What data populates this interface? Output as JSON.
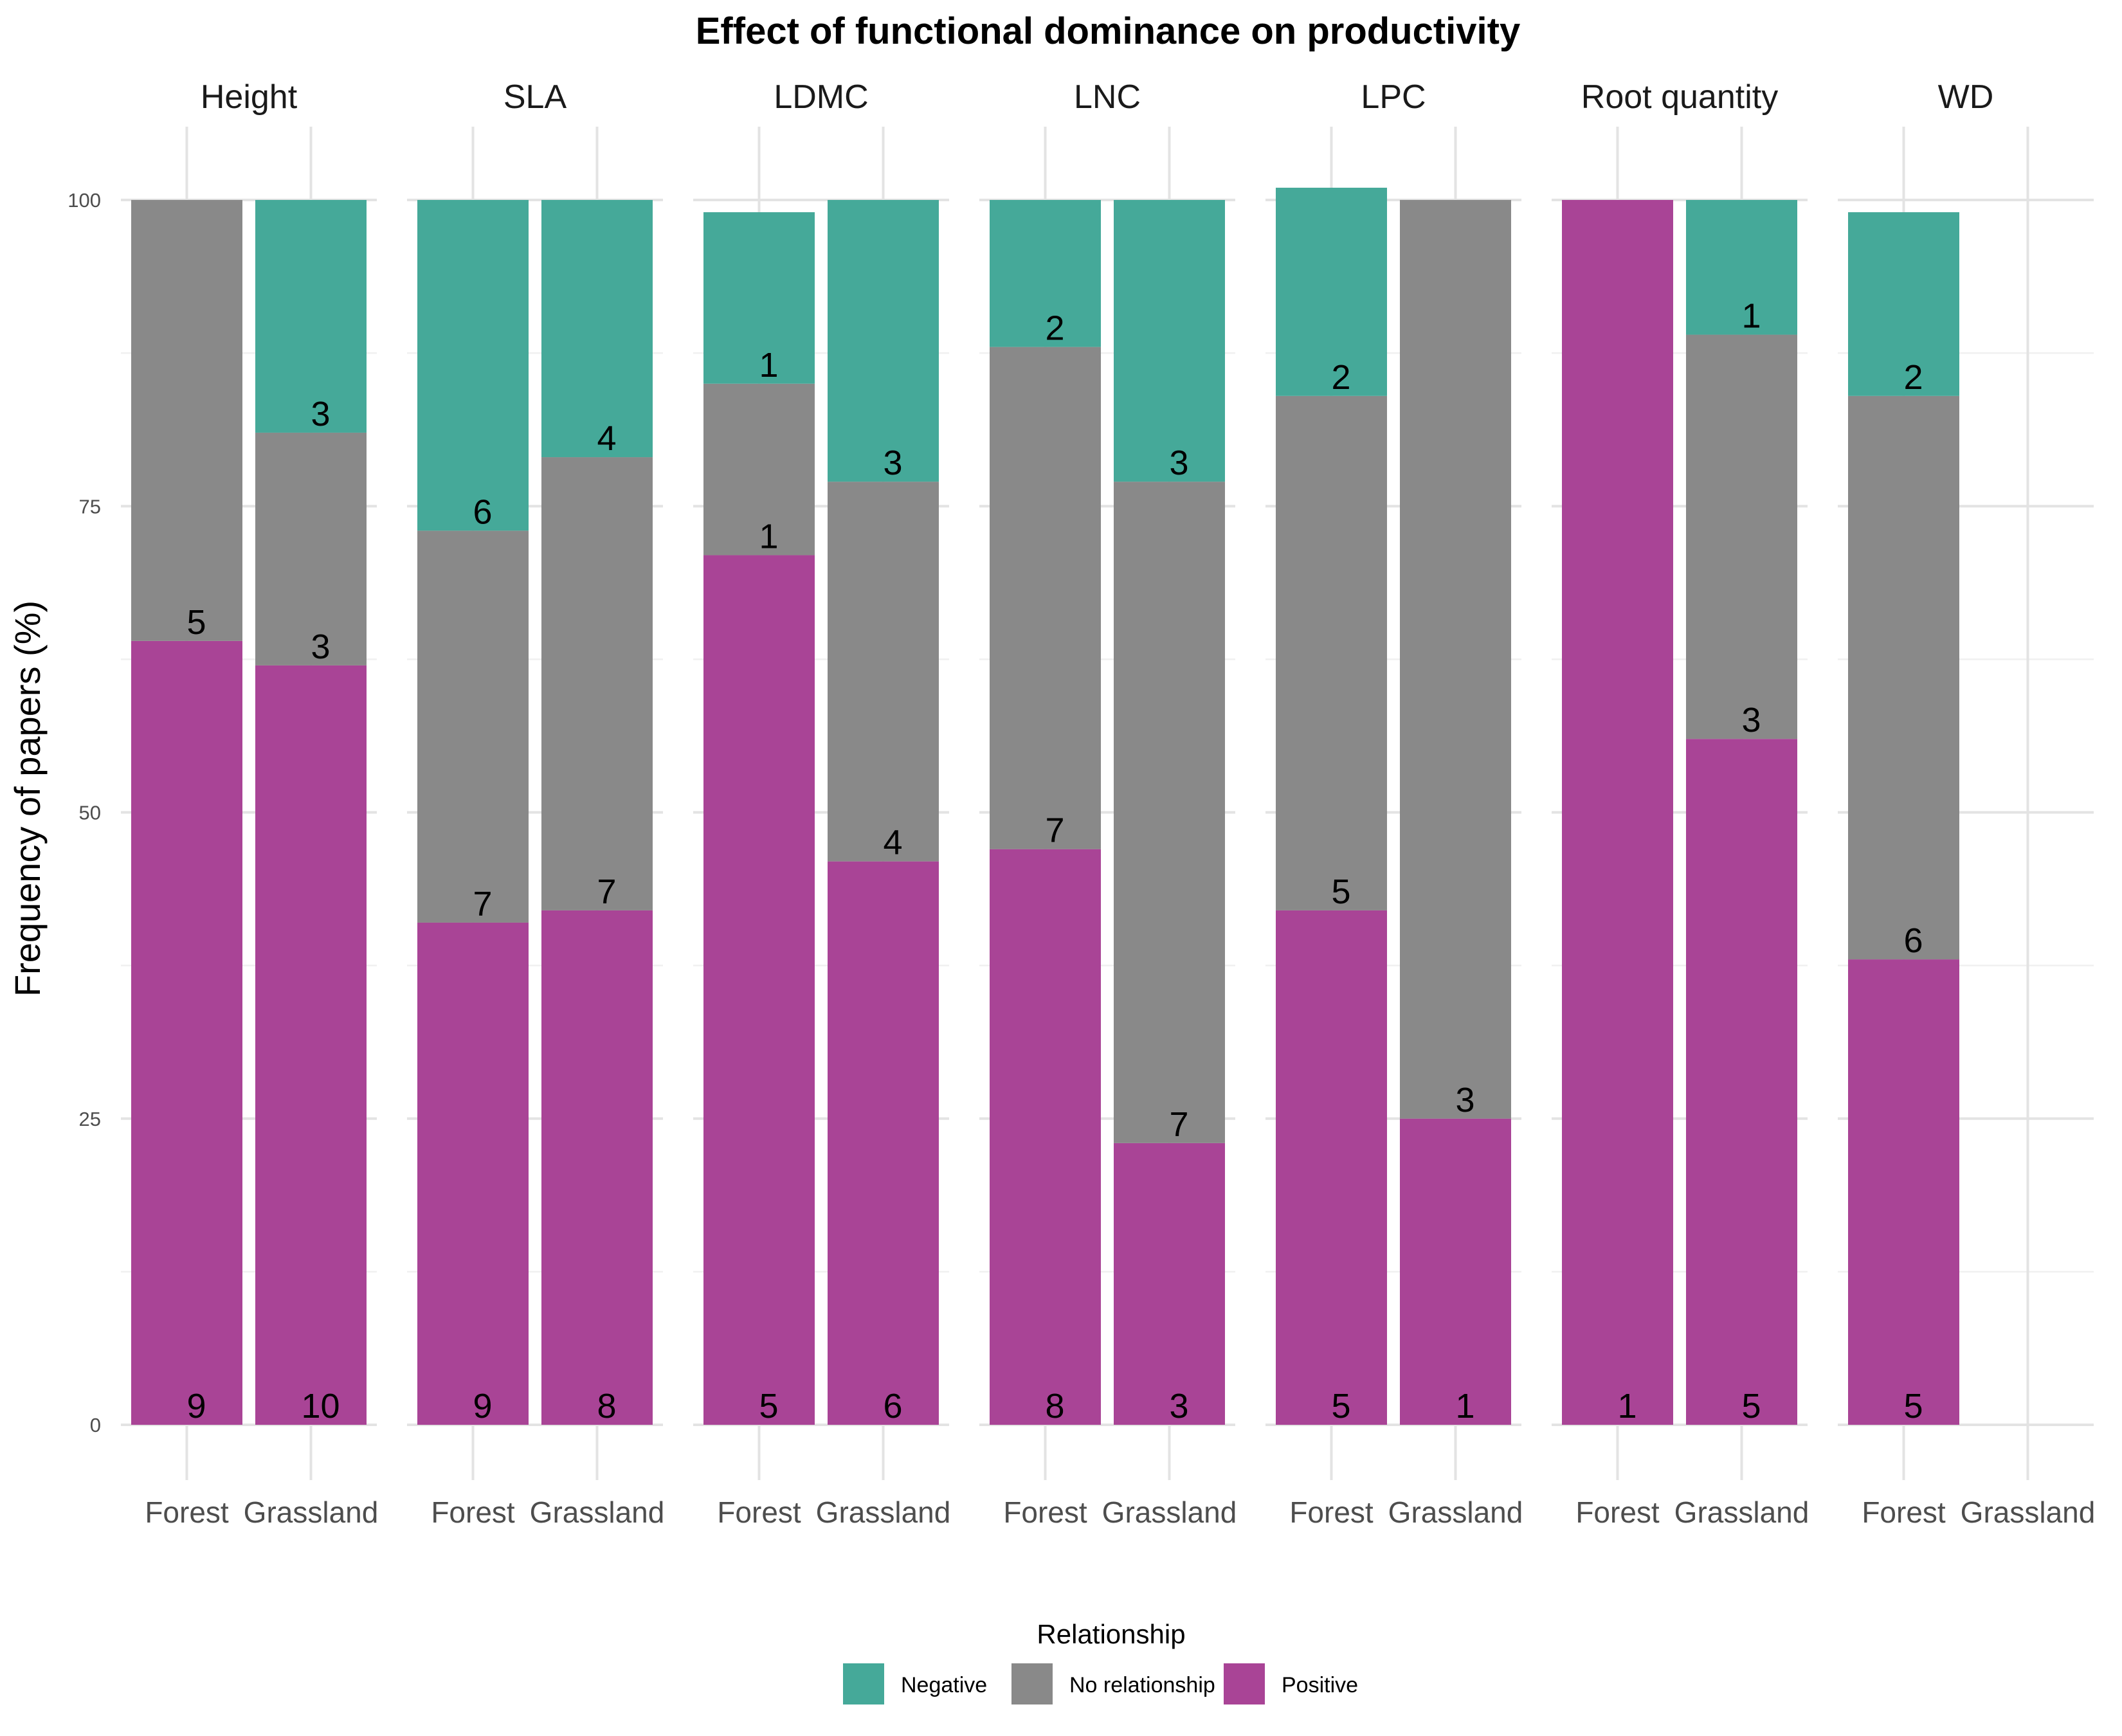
{
  "chart_data": {
    "type": "bar",
    "title": "Effect of functional dominance on productivity",
    "ylabel": "Frequency of papers (%)",
    "xlabel": "",
    "ylim": [
      0,
      100
    ],
    "yticks": [
      "0",
      "25",
      "50",
      "75",
      "100"
    ],
    "categories": [
      "Forest",
      "Grassland"
    ],
    "legend": {
      "title": "Relationship",
      "position": "bottom",
      "entries": [
        "Negative",
        "No relationship",
        "Positive"
      ]
    },
    "colors": {
      "Negative": "#45a999",
      "No relationship": "#898989",
      "Positive": "#a94496"
    },
    "grid": true,
    "facets": [
      {
        "name": "Height",
        "bars": [
          {
            "x": "Forest",
            "segments": [
              {
                "series": "Positive",
                "ymin": 0,
                "ymax": 64,
                "label": "9"
              },
              {
                "series": "No relationship",
                "ymin": 64,
                "ymax": 100,
                "label": "5"
              }
            ]
          },
          {
            "x": "Grassland",
            "segments": [
              {
                "series": "Positive",
                "ymin": 0,
                "ymax": 62,
                "label": "10"
              },
              {
                "series": "No relationship",
                "ymin": 62,
                "ymax": 81,
                "label": "3"
              },
              {
                "series": "Negative",
                "ymin": 81,
                "ymax": 100,
                "label": "3"
              }
            ]
          }
        ]
      },
      {
        "name": "SLA",
        "bars": [
          {
            "x": "Forest",
            "segments": [
              {
                "series": "Positive",
                "ymin": 0,
                "ymax": 41,
                "label": "9"
              },
              {
                "series": "No relationship",
                "ymin": 41,
                "ymax": 73,
                "label": "7"
              },
              {
                "series": "Negative",
                "ymin": 73,
                "ymax": 100,
                "label": "6"
              }
            ]
          },
          {
            "x": "Grassland",
            "segments": [
              {
                "series": "Positive",
                "ymin": 0,
                "ymax": 42,
                "label": "8"
              },
              {
                "series": "No relationship",
                "ymin": 42,
                "ymax": 79,
                "label": "7"
              },
              {
                "series": "Negative",
                "ymin": 79,
                "ymax": 100,
                "label": "4"
              }
            ]
          }
        ]
      },
      {
        "name": "LDMC",
        "bars": [
          {
            "x": "Forest",
            "segments": [
              {
                "series": "Positive",
                "ymin": 0,
                "ymax": 71,
                "label": "5"
              },
              {
                "series": "No relationship",
                "ymin": 71,
                "ymax": 85,
                "label": "1"
              },
              {
                "series": "Negative",
                "ymin": 85,
                "ymax": 99,
                "label": "1"
              }
            ]
          },
          {
            "x": "Grassland",
            "segments": [
              {
                "series": "Positive",
                "ymin": 0,
                "ymax": 46,
                "label": "6"
              },
              {
                "series": "No relationship",
                "ymin": 46,
                "ymax": 77,
                "label": "4"
              },
              {
                "series": "Negative",
                "ymin": 77,
                "ymax": 100,
                "label": "3"
              }
            ]
          }
        ]
      },
      {
        "name": "LNC",
        "bars": [
          {
            "x": "Forest",
            "segments": [
              {
                "series": "Positive",
                "ymin": 0,
                "ymax": 47,
                "label": "8"
              },
              {
                "series": "No relationship",
                "ymin": 47,
                "ymax": 88,
                "label": "7"
              },
              {
                "series": "Negative",
                "ymin": 88,
                "ymax": 100,
                "label": "2"
              }
            ]
          },
          {
            "x": "Grassland",
            "segments": [
              {
                "series": "Positive",
                "ymin": 0,
                "ymax": 23,
                "label": "3"
              },
              {
                "series": "No relationship",
                "ymin": 23,
                "ymax": 77,
                "label": "7"
              },
              {
                "series": "Negative",
                "ymin": 77,
                "ymax": 100,
                "label": "3"
              }
            ]
          }
        ]
      },
      {
        "name": "LPC",
        "bars": [
          {
            "x": "Forest",
            "segments": [
              {
                "series": "Positive",
                "ymin": 0,
                "ymax": 42,
                "label": "5"
              },
              {
                "series": "No relationship",
                "ymin": 42,
                "ymax": 84,
                "label": "5"
              },
              {
                "series": "Negative",
                "ymin": 84,
                "ymax": 101,
                "label": "2"
              }
            ]
          },
          {
            "x": "Grassland",
            "segments": [
              {
                "series": "Positive",
                "ymin": 0,
                "ymax": 25,
                "label": "1"
              },
              {
                "series": "No relationship",
                "ymin": 25,
                "ymax": 100,
                "label": "3"
              }
            ]
          }
        ]
      },
      {
        "name": "Root quantity",
        "bars": [
          {
            "x": "Forest",
            "segments": [
              {
                "series": "Positive",
                "ymin": 0,
                "ymax": 100,
                "label": "1"
              }
            ]
          },
          {
            "x": "Grassland",
            "segments": [
              {
                "series": "Positive",
                "ymin": 0,
                "ymax": 56,
                "label": "5"
              },
              {
                "series": "No relationship",
                "ymin": 56,
                "ymax": 89,
                "label": "3"
              },
              {
                "series": "Negative",
                "ymin": 89,
                "ymax": 100,
                "label": "1"
              }
            ]
          }
        ]
      },
      {
        "name": "WD",
        "bars": [
          {
            "x": "Forest",
            "segments": [
              {
                "series": "Positive",
                "ymin": 0,
                "ymax": 38,
                "label": "5"
              },
              {
                "series": "No relationship",
                "ymin": 38,
                "ymax": 84,
                "label": "6"
              },
              {
                "series": "Negative",
                "ymin": 84,
                "ymax": 99,
                "label": "2"
              }
            ]
          },
          {
            "x": "Grassland",
            "segments": []
          }
        ]
      }
    ]
  }
}
